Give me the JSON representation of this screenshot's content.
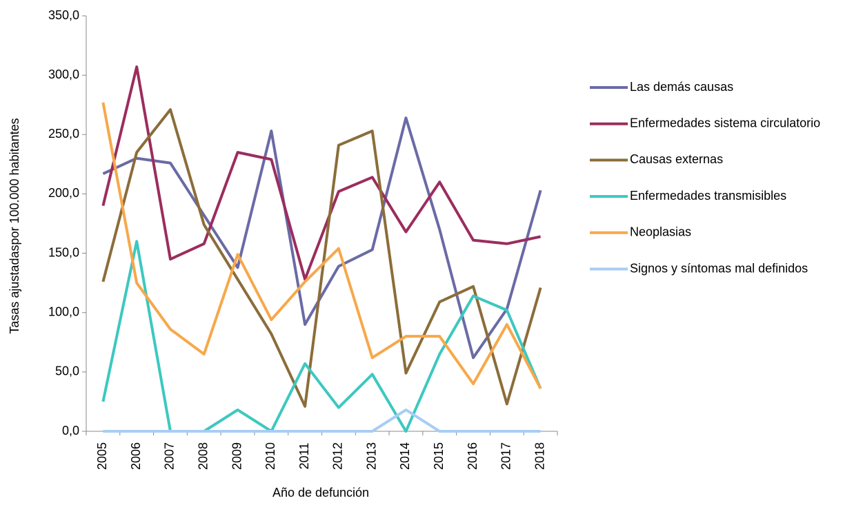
{
  "chart_data": {
    "type": "line",
    "x_label": "Año de defunción",
    "y_label": "Tasas ajustadaspor 100.000 habitantes",
    "categories": [
      "2005",
      "2006",
      "2007",
      "2008",
      "2009",
      "2010",
      "2011",
      "2012",
      "2013",
      "2014",
      "2015",
      "2016",
      "2017",
      "2018"
    ],
    "series": [
      {
        "name": "Las demás causas",
        "color": "#6a6aa6",
        "values": [
          217,
          230,
          226,
          182,
          138,
          253,
          90,
          139,
          153,
          264,
          170,
          62,
          103,
          203
        ]
      },
      {
        "name": "Enfermedades sistema circulatorio",
        "color": "#9b2d5e",
        "values": [
          190,
          307,
          145,
          158,
          235,
          229,
          128,
          202,
          214,
          168,
          210,
          161,
          158,
          164
        ]
      },
      {
        "name": "Causas externas",
        "color": "#8b6d3a",
        "values": [
          126,
          235,
          271,
          174,
          128,
          82,
          21,
          241,
          253,
          49,
          109,
          122,
          23,
          121
        ]
      },
      {
        "name": "Enfermedades transmisibles",
        "color": "#3cc8c0",
        "values": [
          25,
          160,
          0,
          0,
          18,
          0,
          57,
          20,
          48,
          0,
          65,
          114,
          102,
          36
        ]
      },
      {
        "name": "Neoplasias",
        "color": "#f7a84a",
        "values": [
          277,
          125,
          86,
          65,
          149,
          94,
          126,
          154,
          62,
          80,
          80,
          40,
          90,
          36
        ]
      },
      {
        "name": "Signos y síntomas mal definidos",
        "color": "#a8cdf4",
        "values": [
          0,
          0,
          0,
          0,
          0,
          0,
          0,
          0,
          0,
          18,
          0,
          0,
          0,
          0
        ]
      }
    ],
    "ylim": [
      0,
      350
    ],
    "yticks": [
      {
        "value": 0,
        "label": "0,0"
      },
      {
        "value": 50,
        "label": "50,0"
      },
      {
        "value": 100,
        "label": "100,0"
      },
      {
        "value": 150,
        "label": "150,0"
      },
      {
        "value": 200,
        "label": "200,0"
      },
      {
        "value": 250,
        "label": "250,0"
      },
      {
        "value": 300,
        "label": "300,0"
      },
      {
        "value": 350,
        "label": "350,0"
      }
    ],
    "legend": "right"
  }
}
